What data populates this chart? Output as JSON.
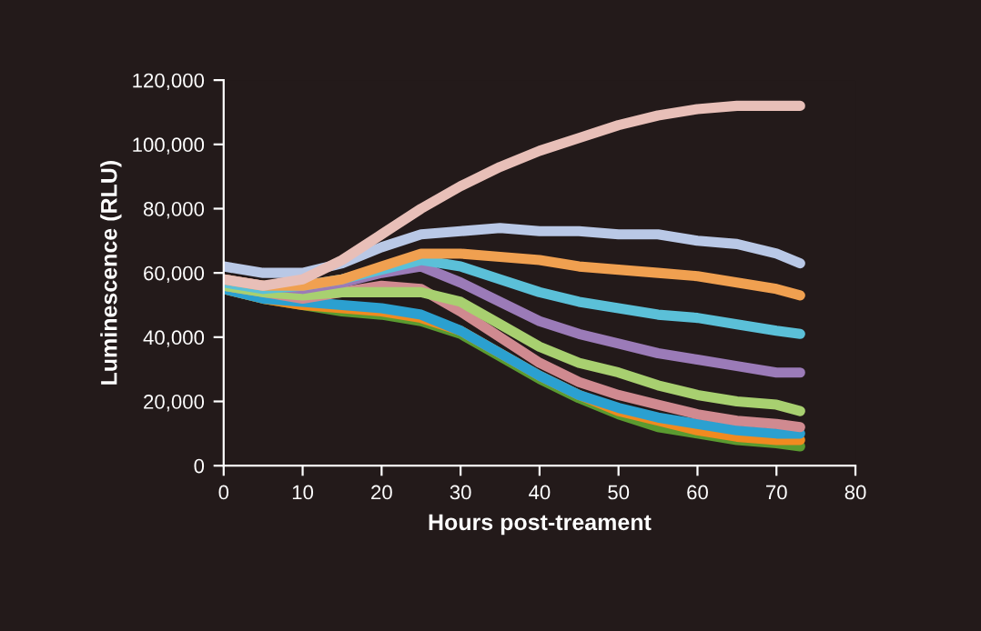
{
  "chart_data": {
    "type": "line",
    "xlabel": "Hours post-treament",
    "ylabel": "Luminescence (RLU)",
    "x": [
      0,
      5,
      10,
      15,
      20,
      25,
      30,
      35,
      40,
      45,
      50,
      55,
      60,
      65,
      70,
      73
    ],
    "xlim": [
      0,
      80
    ],
    "xticks": [
      0,
      10,
      20,
      30,
      40,
      50,
      60,
      70,
      80
    ],
    "ylim": [
      0,
      120000
    ],
    "yticks": [
      {
        "value": 0,
        "label": "0"
      },
      {
        "value": 20000,
        "label": "20,000"
      },
      {
        "value": 40000,
        "label": "40,000"
      },
      {
        "value": 60000,
        "label": "60,000"
      },
      {
        "value": 80000,
        "label": "80,000"
      },
      {
        "value": 100000,
        "label": "100,000"
      },
      {
        "value": 120000,
        "label": "120,000"
      }
    ],
    "grid": false,
    "legend": false,
    "marker": "none",
    "line_style": "solid",
    "series": [
      {
        "color": "#5a9a30",
        "values": [
          55000,
          52000,
          50000,
          48000,
          47000,
          45000,
          41000,
          34000,
          27000,
          21000,
          16000,
          12000,
          10000,
          8000,
          7000,
          6000
        ]
      },
      {
        "color": "#f08a20",
        "values": [
          55000,
          52000,
          50000,
          49000,
          48000,
          46000,
          42000,
          35000,
          28000,
          22000,
          17000,
          14000,
          11000,
          9000,
          8000,
          8000
        ]
      },
      {
        "color": "#2ba0d0",
        "values": [
          55000,
          52000,
          51000,
          50000,
          49000,
          47000,
          42000,
          35000,
          28000,
          22000,
          18000,
          15000,
          13000,
          11000,
          10000,
          10000
        ]
      },
      {
        "color": "#d08a90",
        "values": [
          56000,
          54000,
          52000,
          54000,
          56000,
          55000,
          48000,
          40000,
          32000,
          26000,
          22000,
          19000,
          16000,
          14000,
          13000,
          12000
        ]
      },
      {
        "color": "#a8d070",
        "values": [
          56000,
          54000,
          53000,
          54000,
          54000,
          54000,
          51000,
          44000,
          37000,
          32000,
          29000,
          25000,
          22000,
          20000,
          19000,
          17000
        ]
      },
      {
        "color": "#9b7bb8",
        "values": [
          58000,
          56000,
          55000,
          57000,
          60000,
          62000,
          57000,
          51000,
          45000,
          41000,
          38000,
          35000,
          33000,
          31000,
          29000,
          29000
        ]
      },
      {
        "color": "#5bc0d8",
        "values": [
          57000,
          55000,
          56000,
          58000,
          61000,
          64000,
          62000,
          58000,
          54000,
          51000,
          49000,
          47000,
          46000,
          44000,
          42000,
          41000
        ]
      },
      {
        "color": "#f0a050",
        "values": [
          58000,
          56000,
          56000,
          58000,
          62000,
          66000,
          66000,
          65000,
          64000,
          62000,
          61000,
          60000,
          59000,
          57000,
          55000,
          53000
        ]
      },
      {
        "color": "#b9c8e6",
        "values": [
          62000,
          60000,
          60000,
          63000,
          68000,
          72000,
          73000,
          74000,
          73000,
          73000,
          72000,
          72000,
          70000,
          69000,
          66000,
          63000
        ]
      },
      {
        "color": "#e8bfb8",
        "values": [
          58000,
          56000,
          58000,
          64000,
          72000,
          80000,
          87000,
          93000,
          98000,
          102000,
          106000,
          109000,
          111000,
          112000,
          112000,
          112000
        ]
      }
    ]
  }
}
